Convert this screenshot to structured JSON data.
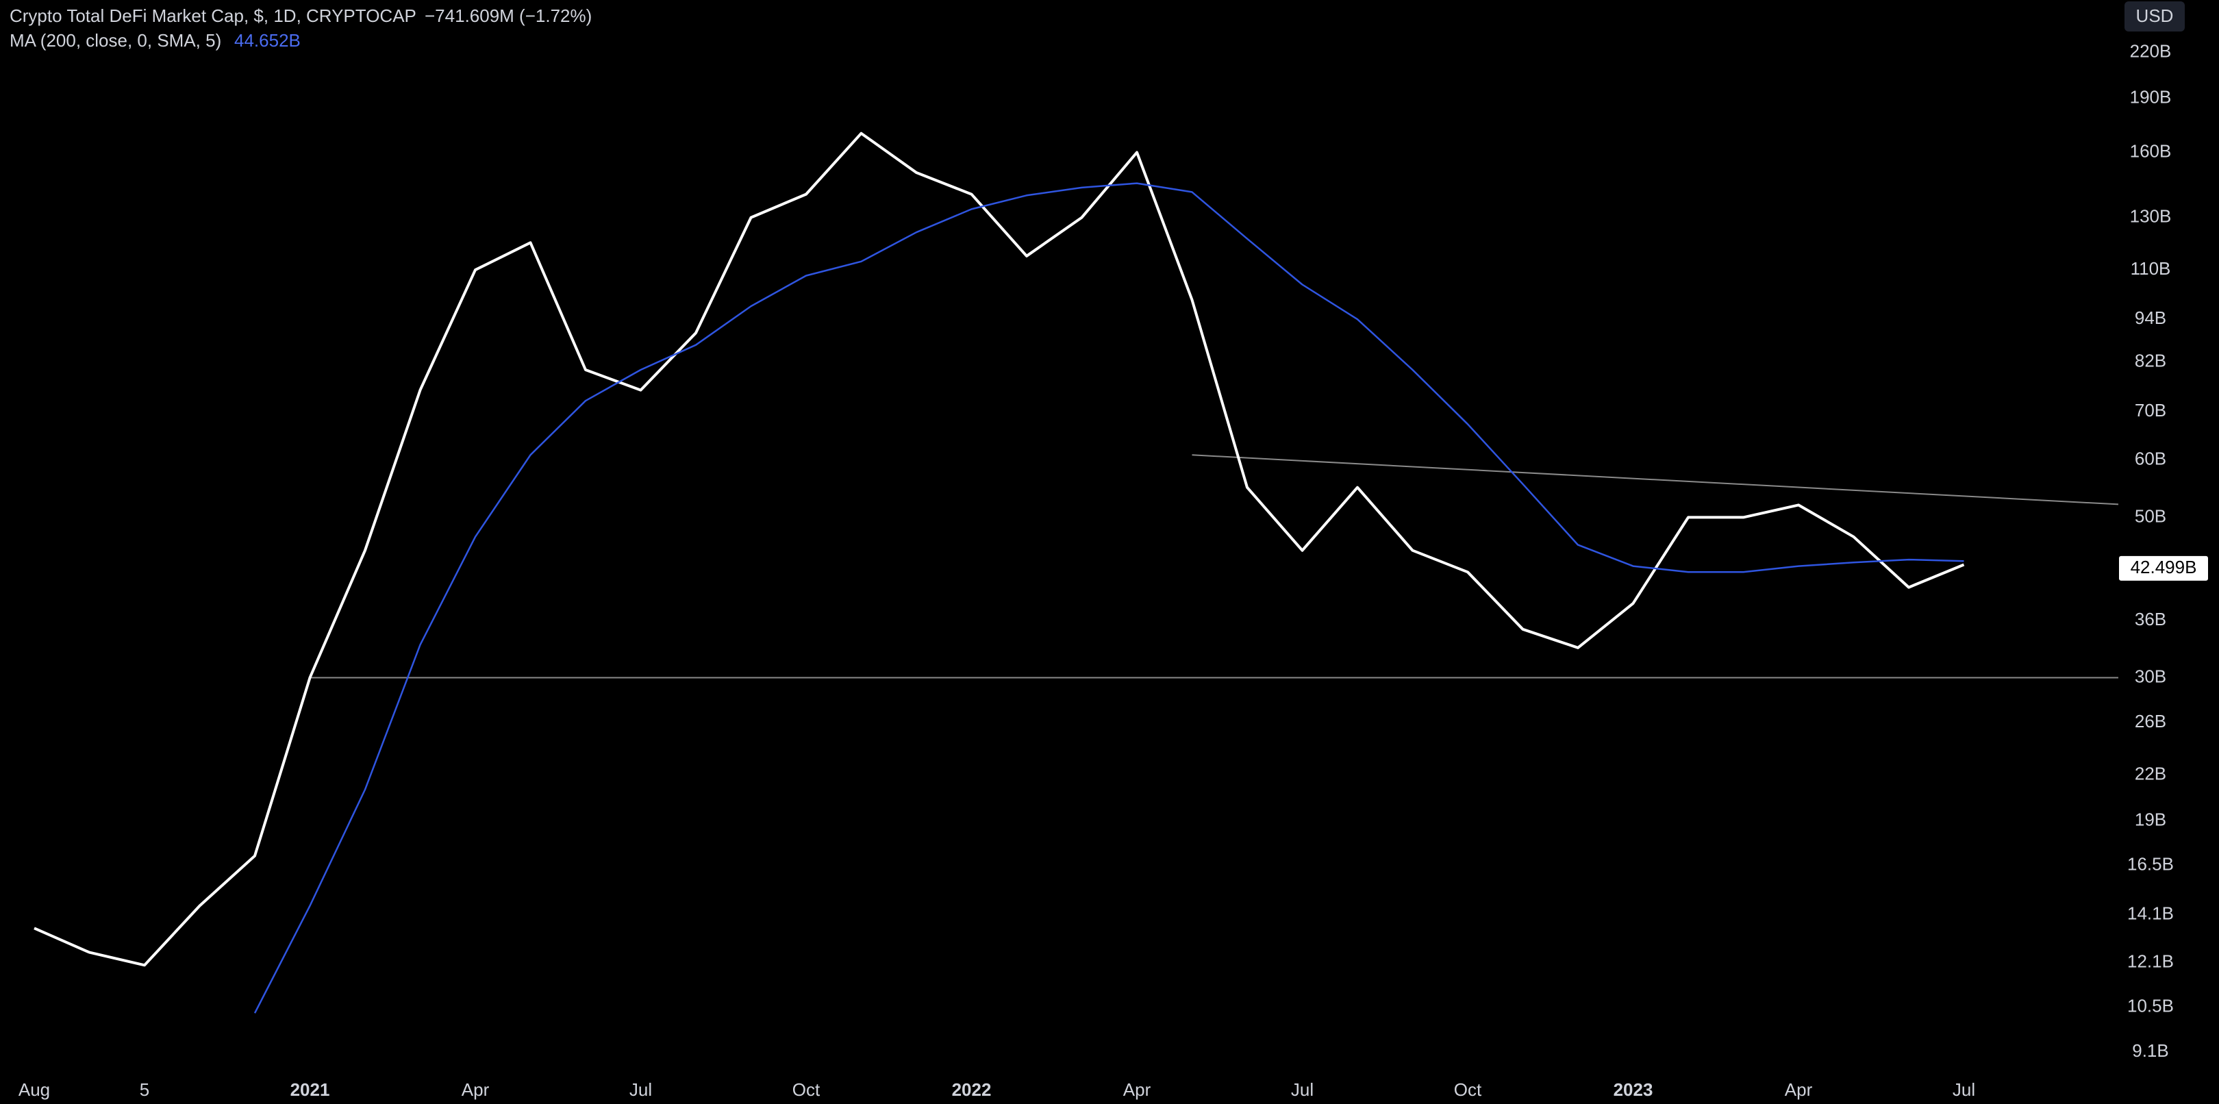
{
  "chart_data": {
    "type": "line",
    "title": "Crypto Total DeFi Market Cap, $, 1D, CRYPTOCAP",
    "change_label": "−741.609M (−1.72%)",
    "ma_value_label": "44.652B",
    "currency": "USD",
    "last_value": 42499000000,
    "last_value_label": "42.499B",
    "log_scale": true,
    "x": [
      "2020-08",
      "2020-09",
      "2020-10",
      "2020-11",
      "2020-12",
      "2021-01",
      "2021-02",
      "2021-03",
      "2021-04",
      "2021-05",
      "2021-06",
      "2021-07",
      "2021-08",
      "2021-09",
      "2021-10",
      "2021-11",
      "2021-12",
      "2022-01",
      "2022-02",
      "2022-03",
      "2022-04",
      "2022-05",
      "2022-06",
      "2022-07",
      "2022-08",
      "2022-09",
      "2022-10",
      "2022-11",
      "2022-12",
      "2023-01",
      "2023-02",
      "2023-03",
      "2023-04",
      "2023-05",
      "2023-06",
      "2023-07"
    ],
    "series": [
      {
        "name": "Crypto Total DeFi Market Cap",
        "color": "#ffffff",
        "values": [
          13500000000,
          12500000000,
          12000000000,
          14500000000,
          17000000000,
          30000000000,
          45000000000,
          75000000000,
          110000000000,
          120000000000,
          80000000000,
          75000000000,
          90000000000,
          130000000000,
          140000000000,
          170000000000,
          150000000000,
          140000000000,
          115000000000,
          130000000000,
          160000000000,
          100000000000,
          55000000000,
          45000000000,
          55000000000,
          45000000000,
          42000000000,
          35000000000,
          33000000000,
          38000000000,
          50000000000,
          50000000000,
          52000000000,
          47000000000,
          40000000000,
          43000000000
        ]
      },
      {
        "name": "MA (200, close, 0, SMA, 5)",
        "color": "#2f55e0",
        "values": [
          null,
          null,
          null,
          null,
          10300000000,
          14500000000,
          21000000000,
          33300000000,
          47000000000,
          61000000000,
          72500000000,
          80000000000,
          86600000000,
          98000000000,
          108000000000,
          113000000000,
          124000000000,
          133500000000,
          139500000000,
          143000000000,
          145000000000,
          141000000000,
          121500000000,
          105000000000,
          94000000000,
          80000000000,
          67300000000,
          55600000000,
          45800000000,
          42800000000,
          42000000000,
          42000000000,
          42800000000,
          43300000000,
          43700000000,
          43500000000
        ]
      }
    ],
    "hline": {
      "x": "2021-01",
      "value": 30000000000
    },
    "trendline": {
      "x": [
        "2022-05",
        "2023-07"
      ],
      "values": [
        61000000000,
        53500000000
      ]
    },
    "ylim": [
      8450000000,
      260000000000
    ],
    "yticks": [
      {
        "value": 220000000000,
        "label": "220B"
      },
      {
        "value": 190000000000,
        "label": "190B"
      },
      {
        "value": 160000000000,
        "label": "160B"
      },
      {
        "value": 130000000000,
        "label": "130B"
      },
      {
        "value": 110000000000,
        "label": "110B"
      },
      {
        "value": 94000000000,
        "label": "94B"
      },
      {
        "value": 82000000000,
        "label": "82B"
      },
      {
        "value": 70000000000,
        "label": "70B"
      },
      {
        "value": 60000000000,
        "label": "60B"
      },
      {
        "value": 50000000000,
        "label": "50B"
      },
      {
        "value": 36000000000,
        "label": "36B"
      },
      {
        "value": 30000000000,
        "label": "30B"
      },
      {
        "value": 26000000000,
        "label": "26B"
      },
      {
        "value": 22000000000,
        "label": "22B"
      },
      {
        "value": 19000000000,
        "label": "19B"
      },
      {
        "value": 16500000000,
        "label": "16.5B"
      },
      {
        "value": 14100000000,
        "label": "14.1B"
      },
      {
        "value": 12100000000,
        "label": "12.1B"
      },
      {
        "value": 10500000000,
        "label": "10.5B"
      },
      {
        "value": 9100000000,
        "label": "9.1B"
      }
    ],
    "xticks": [
      {
        "value": "2020-08",
        "label": "Aug"
      },
      {
        "value": "2020-10",
        "label": "5"
      },
      {
        "value": "2021-01",
        "label": "2021"
      },
      {
        "value": "2021-04",
        "label": "Apr"
      },
      {
        "value": "2021-07",
        "label": "Jul"
      },
      {
        "value": "2021-10",
        "label": "Oct"
      },
      {
        "value": "2022-01",
        "label": "2022"
      },
      {
        "value": "2022-04",
        "label": "Apr"
      },
      {
        "value": "2022-07",
        "label": "Jul"
      },
      {
        "value": "2022-10",
        "label": "Oct"
      },
      {
        "value": "2023-01",
        "label": "2023"
      },
      {
        "value": "2023-04",
        "label": "Apr"
      },
      {
        "value": "2023-07",
        "label": "Jul"
      }
    ],
    "grid": false
  }
}
